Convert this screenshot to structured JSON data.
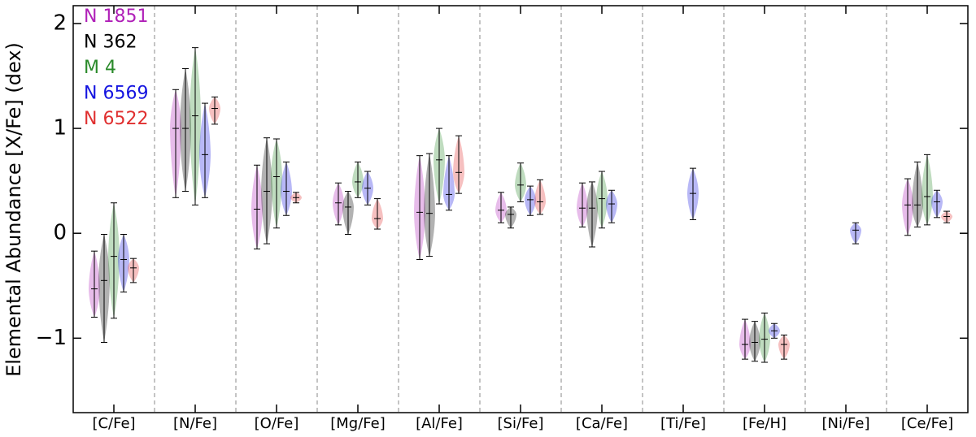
{
  "chart_data": {
    "type": "violin",
    "ylabel": "Elemental Abundance [X/Fe] (dex)",
    "categories": [
      "[C/Fe]",
      "[N/Fe]",
      "[O/Fe]",
      "[Mg/Fe]",
      "[Al/Fe]",
      "[Si/Fe]",
      "[Ca/Fe]",
      "[Ti/Fe]",
      "[Fe/H]",
      "[Ni/Fe]",
      "[Ce/Fe]"
    ],
    "ylim": [
      -1.71,
      2.17
    ],
    "yticks": [
      {
        "value": -1,
        "label": "−1"
      },
      0,
      1,
      2
    ],
    "legend": "upper left",
    "series": [
      {
        "name": "N 1851",
        "color": "#b020b8",
        "min": [
          -0.8,
          0.34,
          -0.15,
          0.08,
          -0.25,
          0.1,
          0.06,
          null,
          -1.2,
          null,
          -0.02
        ],
        "median": [
          -0.53,
          1.0,
          0.23,
          0.29,
          0.2,
          0.22,
          0.24,
          null,
          -1.06,
          null,
          0.27
        ],
        "max": [
          -0.17,
          1.37,
          0.65,
          0.48,
          0.74,
          0.39,
          0.48,
          null,
          -0.82,
          null,
          0.52
        ]
      },
      {
        "name": "N 362",
        "color": "#000000",
        "min": [
          -1.04,
          0.4,
          -0.1,
          -0.01,
          -0.22,
          0.05,
          -0.13,
          null,
          -1.22,
          null,
          0.06
        ],
        "median": [
          -0.45,
          1.0,
          0.4,
          0.25,
          0.19,
          0.18,
          0.24,
          null,
          -1.04,
          null,
          0.27
        ],
        "max": [
          -0.01,
          1.57,
          0.91,
          0.4,
          0.76,
          0.25,
          0.49,
          null,
          -0.84,
          null,
          0.68
        ]
      },
      {
        "name": "M 4",
        "color": "#2a8a2a",
        "min": [
          -0.81,
          0.27,
          0.05,
          0.34,
          0.28,
          0.3,
          0.05,
          null,
          -1.23,
          null,
          0.08
        ],
        "median": [
          -0.22,
          1.12,
          0.54,
          0.49,
          0.7,
          0.46,
          0.33,
          null,
          -1.01,
          null,
          0.35
        ],
        "max": [
          0.29,
          1.77,
          0.9,
          0.68,
          1.0,
          0.67,
          0.59,
          null,
          -0.76,
          null,
          0.75
        ]
      },
      {
        "name": "N 6569",
        "color": "#1414e0",
        "min": [
          -0.56,
          0.34,
          0.17,
          0.27,
          0.22,
          0.17,
          0.1,
          0.13,
          -1.0,
          -0.1,
          0.15
        ],
        "median": [
          -0.25,
          0.75,
          0.4,
          0.43,
          0.37,
          0.32,
          0.28,
          0.38,
          -0.93,
          0.03,
          0.3
        ],
        "max": [
          -0.01,
          1.24,
          0.68,
          0.59,
          0.74,
          0.45,
          0.41,
          0.62,
          -0.86,
          0.1,
          0.41
        ]
      },
      {
        "name": "N 6522",
        "color": "#e03030",
        "min": [
          -0.47,
          1.04,
          0.29,
          0.04,
          0.38,
          0.18,
          null,
          null,
          -1.2,
          null,
          0.1
        ],
        "median": [
          -0.33,
          1.19,
          0.34,
          0.14,
          0.58,
          0.3,
          null,
          null,
          -1.06,
          null,
          0.16
        ],
        "max": [
          -0.24,
          1.3,
          0.39,
          0.33,
          0.93,
          0.51,
          null,
          null,
          -0.97,
          null,
          0.21
        ]
      }
    ]
  }
}
